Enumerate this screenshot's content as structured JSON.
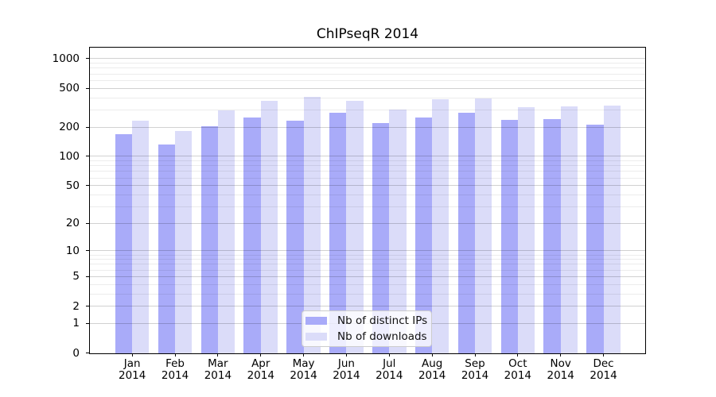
{
  "title": "ChIPseqR 2014",
  "legend": {
    "items": [
      {
        "label": "Nb of distinct IPs",
        "color": "#a9abf9"
      },
      {
        "label": "Nb of downloads",
        "color": "#dbdcf9"
      }
    ]
  },
  "colors": {
    "bar_distinct_ips": "#a9abf9",
    "bar_downloads": "#dbdcf9",
    "grid_major": "rgba(0,0,0,0.18)",
    "grid_minor": "rgba(0,0,0,0.075)",
    "axis": "#000000",
    "legend_border": "#cccccc"
  },
  "chart_data": {
    "type": "bar",
    "title": "ChIPseqR 2014",
    "xlabel": "",
    "ylabel": "",
    "x_months": [
      "Jan",
      "Feb",
      "Mar",
      "Apr",
      "May",
      "Jun",
      "Jul",
      "Aug",
      "Sep",
      "Oct",
      "Nov",
      "Dec"
    ],
    "x_year": "2014",
    "categories": [
      "Jan 2014",
      "Feb 2014",
      "Mar 2014",
      "Apr 2014",
      "May 2014",
      "Jun 2014",
      "Jul 2014",
      "Aug 2014",
      "Sep 2014",
      "Oct 2014",
      "Nov 2014",
      "Dec 2014"
    ],
    "series": [
      {
        "name": "Nb of distinct IPs",
        "color": "#a9abf9",
        "values": [
          168,
          133,
          203,
          251,
          234,
          282,
          218,
          252,
          282,
          238,
          242,
          210
        ]
      },
      {
        "name": "Nb of downloads",
        "color": "#dbdcf9",
        "values": [
          234,
          183,
          297,
          371,
          411,
          368,
          300,
          382,
          390,
          321,
          325,
          334
        ]
      }
    ],
    "yscale": "log1p",
    "y_axis": {
      "major_ticks": [
        1000,
        500,
        200,
        100,
        50,
        20,
        10,
        5,
        2,
        1,
        0
      ],
      "minor_ticks": [
        900,
        800,
        700,
        600,
        400,
        300,
        90,
        80,
        70,
        60,
        40,
        30,
        9,
        8,
        7,
        6,
        4,
        3
      ],
      "top_value": 1300
    },
    "grid": true,
    "legend_position": "lower center"
  }
}
